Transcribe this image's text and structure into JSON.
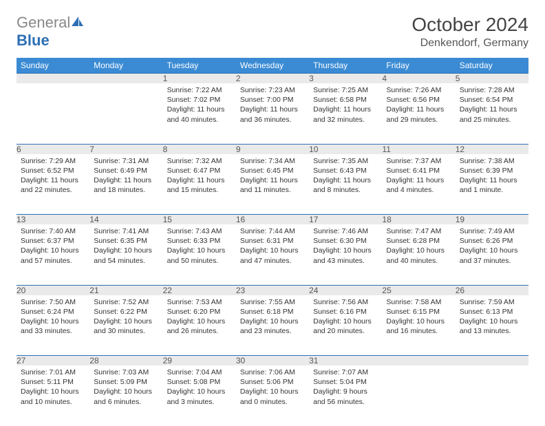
{
  "branding": {
    "logo_part1": "General",
    "logo_part2": "Blue",
    "logo_icon_color": "#2d6fb5"
  },
  "title": {
    "month": "October 2024",
    "location": "Denkendorf, Germany"
  },
  "styling": {
    "header_bg": "#3b8bd4",
    "header_text": "#ffffff",
    "daynum_bg": "#eaeaea",
    "daynum_border": "#2d6fb5",
    "body_bg": "#ffffff",
    "text_color": "#333333",
    "title_color": "#444444",
    "font_family": "Arial"
  },
  "weekdays": [
    "Sunday",
    "Monday",
    "Tuesday",
    "Wednesday",
    "Thursday",
    "Friday",
    "Saturday"
  ],
  "weeks": [
    [
      null,
      null,
      {
        "n": "1",
        "sr": "7:22 AM",
        "ss": "7:02 PM",
        "dl": "11 hours and 40 minutes."
      },
      {
        "n": "2",
        "sr": "7:23 AM",
        "ss": "7:00 PM",
        "dl": "11 hours and 36 minutes."
      },
      {
        "n": "3",
        "sr": "7:25 AM",
        "ss": "6:58 PM",
        "dl": "11 hours and 32 minutes."
      },
      {
        "n": "4",
        "sr": "7:26 AM",
        "ss": "6:56 PM",
        "dl": "11 hours and 29 minutes."
      },
      {
        "n": "5",
        "sr": "7:28 AM",
        "ss": "6:54 PM",
        "dl": "11 hours and 25 minutes."
      }
    ],
    [
      {
        "n": "6",
        "sr": "7:29 AM",
        "ss": "6:52 PM",
        "dl": "11 hours and 22 minutes."
      },
      {
        "n": "7",
        "sr": "7:31 AM",
        "ss": "6:49 PM",
        "dl": "11 hours and 18 minutes."
      },
      {
        "n": "8",
        "sr": "7:32 AM",
        "ss": "6:47 PM",
        "dl": "11 hours and 15 minutes."
      },
      {
        "n": "9",
        "sr": "7:34 AM",
        "ss": "6:45 PM",
        "dl": "11 hours and 11 minutes."
      },
      {
        "n": "10",
        "sr": "7:35 AM",
        "ss": "6:43 PM",
        "dl": "11 hours and 8 minutes."
      },
      {
        "n": "11",
        "sr": "7:37 AM",
        "ss": "6:41 PM",
        "dl": "11 hours and 4 minutes."
      },
      {
        "n": "12",
        "sr": "7:38 AM",
        "ss": "6:39 PM",
        "dl": "11 hours and 1 minute."
      }
    ],
    [
      {
        "n": "13",
        "sr": "7:40 AM",
        "ss": "6:37 PM",
        "dl": "10 hours and 57 minutes."
      },
      {
        "n": "14",
        "sr": "7:41 AM",
        "ss": "6:35 PM",
        "dl": "10 hours and 54 minutes."
      },
      {
        "n": "15",
        "sr": "7:43 AM",
        "ss": "6:33 PM",
        "dl": "10 hours and 50 minutes."
      },
      {
        "n": "16",
        "sr": "7:44 AM",
        "ss": "6:31 PM",
        "dl": "10 hours and 47 minutes."
      },
      {
        "n": "17",
        "sr": "7:46 AM",
        "ss": "6:30 PM",
        "dl": "10 hours and 43 minutes."
      },
      {
        "n": "18",
        "sr": "7:47 AM",
        "ss": "6:28 PM",
        "dl": "10 hours and 40 minutes."
      },
      {
        "n": "19",
        "sr": "7:49 AM",
        "ss": "6:26 PM",
        "dl": "10 hours and 37 minutes."
      }
    ],
    [
      {
        "n": "20",
        "sr": "7:50 AM",
        "ss": "6:24 PM",
        "dl": "10 hours and 33 minutes."
      },
      {
        "n": "21",
        "sr": "7:52 AM",
        "ss": "6:22 PM",
        "dl": "10 hours and 30 minutes."
      },
      {
        "n": "22",
        "sr": "7:53 AM",
        "ss": "6:20 PM",
        "dl": "10 hours and 26 minutes."
      },
      {
        "n": "23",
        "sr": "7:55 AM",
        "ss": "6:18 PM",
        "dl": "10 hours and 23 minutes."
      },
      {
        "n": "24",
        "sr": "7:56 AM",
        "ss": "6:16 PM",
        "dl": "10 hours and 20 minutes."
      },
      {
        "n": "25",
        "sr": "7:58 AM",
        "ss": "6:15 PM",
        "dl": "10 hours and 16 minutes."
      },
      {
        "n": "26",
        "sr": "7:59 AM",
        "ss": "6:13 PM",
        "dl": "10 hours and 13 minutes."
      }
    ],
    [
      {
        "n": "27",
        "sr": "7:01 AM",
        "ss": "5:11 PM",
        "dl": "10 hours and 10 minutes."
      },
      {
        "n": "28",
        "sr": "7:03 AM",
        "ss": "5:09 PM",
        "dl": "10 hours and 6 minutes."
      },
      {
        "n": "29",
        "sr": "7:04 AM",
        "ss": "5:08 PM",
        "dl": "10 hours and 3 minutes."
      },
      {
        "n": "30",
        "sr": "7:06 AM",
        "ss": "5:06 PM",
        "dl": "10 hours and 0 minutes."
      },
      {
        "n": "31",
        "sr": "7:07 AM",
        "ss": "5:04 PM",
        "dl": "9 hours and 56 minutes."
      },
      null,
      null
    ]
  ],
  "labels": {
    "sunrise": "Sunrise:",
    "sunset": "Sunset:",
    "daylight": "Daylight:"
  }
}
